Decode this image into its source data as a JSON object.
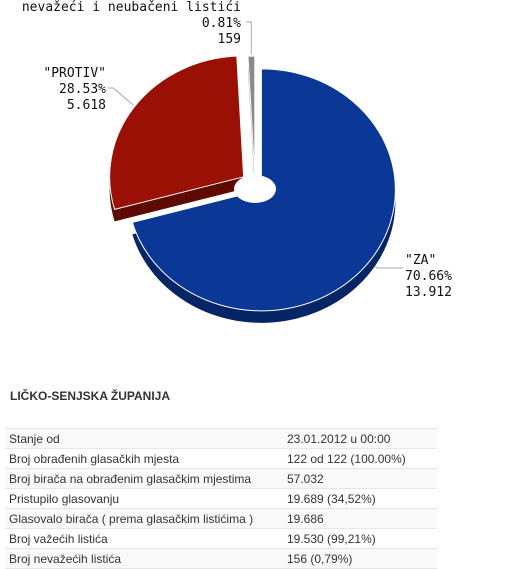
{
  "chart_data": {
    "type": "pie",
    "title": "",
    "slices": [
      {
        "label": "\"ZA\"",
        "percent": 70.66,
        "value": "13.912",
        "percent_text": "70.66%",
        "color": "#0b3796",
        "side": "#062566"
      },
      {
        "label": "\"PROTIV\"",
        "percent": 28.53,
        "value": "5.618",
        "percent_text": "28.53%",
        "color": "#9a1004",
        "side": "#5e0902"
      },
      {
        "label": "nevažeći i neubačeni listići",
        "percent": 0.81,
        "value": "159",
        "percent_text": "0.81%",
        "color": "#8a8a8a",
        "side": "#5a5a5a"
      }
    ],
    "legend": "none"
  },
  "region": {
    "title": "LIČKO-SENJSKA ŽUPANIJA"
  },
  "stats": [
    {
      "label": "Stanje od",
      "value": "23.01.2012 u 00:00"
    },
    {
      "label": "Broj obrađenih glasačkih mjesta",
      "value": "122 od 122 (100.00%)"
    },
    {
      "label": "Broj birača na obrađenim glasačkim mjestima",
      "value": "57.032"
    },
    {
      "label": "Pristupilo glasovanju",
      "value": "19.689 (34,52%)"
    },
    {
      "label": "Glasovalo birača ( prema glasačkim listićima )",
      "value": "19.686"
    },
    {
      "label": "Broj važećih listića",
      "value": "19.530 (99,21%)"
    },
    {
      "label": "Broj nevažećih listića",
      "value": "156 (0,79%)"
    }
  ]
}
